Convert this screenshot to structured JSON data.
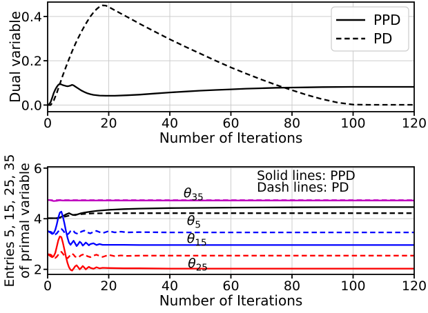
{
  "figure": {
    "background": "#ffffff",
    "grid_color": "#cccccc",
    "spine_color": "#000000",
    "colors": {
      "ppd_pd": "#000000",
      "theta5": "#000000",
      "theta15": "#0000ff",
      "theta25": "#ff0000",
      "theta35": "#bf00bf"
    }
  },
  "chart_data": [
    {
      "id": "dual",
      "type": "line",
      "title": "",
      "xlabel": "Number of Iterations",
      "ylabel": "Dual variable",
      "xlim": [
        0,
        120
      ],
      "ylim": [
        -0.03,
        0.465
      ],
      "xticks": [
        0,
        20,
        40,
        60,
        80,
        100,
        120
      ],
      "yticks": [
        0.0,
        0.2,
        0.4
      ],
      "ytick_labels": [
        "0.0",
        "0.2",
        "0.4"
      ],
      "grid": true,
      "legend": {
        "position": "upper right",
        "entries": [
          {
            "label": "PPD",
            "dash": false
          },
          {
            "label": "PD",
            "dash": true
          }
        ]
      },
      "series": [
        {
          "name": "PPD",
          "color": "#000000",
          "dash": false,
          "x": [
            0,
            0.5,
            1,
            1.5,
            2,
            2.5,
            3,
            3.5,
            4,
            4.5,
            5,
            6,
            6.5,
            7,
            7.5,
            8,
            8.5,
            9,
            10,
            11,
            12,
            13,
            14,
            15,
            17,
            19,
            22,
            26,
            30,
            35,
            40,
            45,
            50,
            55,
            60,
            65,
            70,
            75,
            80,
            85,
            90,
            100,
            110,
            120
          ],
          "y": [
            0,
            0.004,
            0.014,
            0.033,
            0.054,
            0.07,
            0.082,
            0.091,
            0.096,
            0.093,
            0.09,
            0.086,
            0.085,
            0.086,
            0.088,
            0.091,
            0.089,
            0.084,
            0.075,
            0.066,
            0.059,
            0.053,
            0.049,
            0.046,
            0.043,
            0.042,
            0.042,
            0.044,
            0.047,
            0.052,
            0.057,
            0.061,
            0.065,
            0.068,
            0.071,
            0.074,
            0.076,
            0.078,
            0.079,
            0.08,
            0.081,
            0.082,
            0.082,
            0.082
          ]
        },
        {
          "name": "PD",
          "color": "#000000",
          "dash": true,
          "x": [
            0,
            1,
            2,
            3,
            4,
            5,
            6,
            7,
            8,
            9,
            10,
            11,
            12,
            13,
            14,
            15,
            16,
            17,
            18,
            19,
            20,
            22,
            24,
            26,
            28,
            30,
            35,
            40,
            45,
            50,
            55,
            60,
            65,
            70,
            75,
            80,
            85,
            90,
            95,
            100,
            105,
            120
          ],
          "y": [
            0,
            0,
            0.02,
            0.055,
            0.095,
            0.135,
            0.172,
            0.208,
            0.242,
            0.274,
            0.303,
            0.33,
            0.355,
            0.378,
            0.4,
            0.418,
            0.433,
            0.444,
            0.45,
            0.449,
            0.443,
            0.428,
            0.413,
            0.398,
            0.383,
            0.368,
            0.332,
            0.297,
            0.264,
            0.232,
            0.2,
            0.17,
            0.142,
            0.115,
            0.09,
            0.067,
            0.045,
            0.026,
            0.011,
            0.002,
            0.001,
            0.001
          ]
        }
      ]
    },
    {
      "id": "primal",
      "type": "line",
      "title": "",
      "xlabel": "Number of Iterations",
      "ylabel_lines": [
        "Entries 5, 15, 25, 35",
        "of primal variable"
      ],
      "xlim": [
        0,
        120
      ],
      "ylim": [
        1.8,
        6.05
      ],
      "xticks": [
        0,
        20,
        40,
        60,
        80,
        100,
        120
      ],
      "yticks": [
        2,
        4,
        6
      ],
      "ytick_labels": [
        "2",
        "4",
        "6"
      ],
      "grid": true,
      "annotations": [
        {
          "name": "theta-35",
          "base": "θ",
          "sub": "35",
          "x": 44.5,
          "y": 4.85
        },
        {
          "name": "theta-5",
          "base": "θ",
          "sub": "5",
          "x": 45.6,
          "y": 3.76
        },
        {
          "name": "theta-15",
          "base": "θ",
          "sub": "15",
          "x": 45.6,
          "y": 3.05
        },
        {
          "name": "theta-25",
          "base": "θ",
          "sub": "25",
          "x": 45.9,
          "y": 2.07
        },
        {
          "name": "solid-lines-note",
          "text": "Solid lines: PPD",
          "x": 68.5,
          "y": 5.53
        },
        {
          "name": "dash-lines-note",
          "text": "Dash lines: PD",
          "x": 68.5,
          "y": 5.07
        }
      ],
      "series": [
        {
          "name": "theta5-pd",
          "color": "#000000",
          "dash": true,
          "x": [
            0,
            3,
            5,
            7,
            9,
            11,
            13,
            15,
            18,
            20,
            30,
            60,
            120
          ],
          "y": [
            4.02,
            4.02,
            4.06,
            4.12,
            4.16,
            4.18,
            4.2,
            4.21,
            4.215,
            4.22,
            4.22,
            4.22,
            4.22
          ]
        },
        {
          "name": "theta5-ppd",
          "color": "#000000",
          "dash": false,
          "x": [
            0,
            3,
            4,
            5,
            6,
            7,
            8,
            9,
            10,
            11,
            12,
            14,
            16,
            18,
            20,
            25,
            30,
            40,
            50,
            60,
            80,
            100,
            120
          ],
          "y": [
            4.02,
            4.02,
            4.05,
            4.1,
            4.17,
            4.22,
            4.16,
            4.14,
            4.18,
            4.22,
            4.24,
            4.28,
            4.31,
            4.33,
            4.35,
            4.38,
            4.4,
            4.42,
            4.43,
            4.44,
            4.45,
            4.46,
            4.46
          ]
        },
        {
          "name": "theta15-pd",
          "color": "#0000ff",
          "dash": true,
          "x": [
            0,
            1,
            2,
            2.5,
            3,
            3.5,
            4,
            4.5,
            5,
            5.5,
            6,
            6.5,
            7,
            7.5,
            8,
            8.5,
            9,
            10,
            11,
            12,
            13,
            14,
            15,
            16,
            17,
            18,
            19,
            20,
            22,
            24,
            26,
            30,
            40,
            60,
            80,
            100,
            120
          ],
          "y": [
            3.5,
            3.48,
            3.42,
            3.38,
            3.42,
            3.5,
            3.57,
            3.6,
            3.54,
            3.46,
            3.39,
            3.38,
            3.43,
            3.51,
            3.55,
            3.51,
            3.44,
            3.4,
            3.49,
            3.53,
            3.46,
            3.42,
            3.48,
            3.52,
            3.47,
            3.43,
            3.47,
            3.51,
            3.46,
            3.49,
            3.46,
            3.47,
            3.46,
            3.46,
            3.46,
            3.46,
            3.46
          ]
        },
        {
          "name": "theta15-ppd",
          "color": "#0000ff",
          "dash": false,
          "x": [
            0,
            0.8,
            1.5,
            2,
            2.5,
            3,
            3.5,
            4,
            4.5,
            5,
            5.5,
            6,
            6.5,
            7,
            7.5,
            8,
            8.5,
            9,
            9.5,
            10,
            10.5,
            11,
            11.5,
            12,
            12.5,
            13,
            13.5,
            14,
            15,
            16,
            17,
            18,
            20,
            25,
            30,
            40,
            60,
            80,
            100,
            120
          ],
          "y": [
            3.52,
            3.46,
            3.4,
            3.43,
            3.56,
            3.78,
            4.05,
            4.24,
            4.28,
            4.08,
            3.82,
            3.52,
            3.25,
            3.05,
            2.97,
            3.05,
            3.13,
            3.03,
            2.92,
            3.0,
            3.09,
            3.04,
            2.94,
            2.99,
            3.06,
            3.01,
            2.95,
            3.0,
            3.03,
            2.96,
            3.0,
            2.97,
            2.97,
            2.97,
            2.96,
            2.96,
            2.96,
            2.96,
            2.96,
            2.96
          ]
        },
        {
          "name": "theta25-pd",
          "color": "#ff0000",
          "dash": true,
          "x": [
            0,
            1,
            2,
            2.5,
            3,
            3.5,
            4,
            4.5,
            5,
            5.5,
            6,
            6.5,
            7,
            7.5,
            8,
            8.5,
            9,
            10,
            11,
            12,
            13,
            14,
            15,
            16,
            17,
            18,
            19,
            20,
            22,
            24,
            26,
            30,
            40,
            60,
            80,
            100,
            120
          ],
          "y": [
            2.6,
            2.58,
            2.5,
            2.45,
            2.5,
            2.58,
            2.66,
            2.69,
            2.62,
            2.53,
            2.46,
            2.44,
            2.5,
            2.58,
            2.62,
            2.58,
            2.5,
            2.47,
            2.56,
            2.6,
            2.52,
            2.48,
            2.54,
            2.58,
            2.53,
            2.49,
            2.53,
            2.57,
            2.52,
            2.55,
            2.53,
            2.54,
            2.54,
            2.54,
            2.54,
            2.54,
            2.54
          ]
        },
        {
          "name": "theta25-ppd",
          "color": "#ff0000",
          "dash": false,
          "x": [
            0,
            0.8,
            1.5,
            2,
            2.5,
            3,
            3.5,
            4,
            4.5,
            5,
            5.5,
            6,
            6.5,
            7,
            7.5,
            8,
            8.5,
            9,
            9.5,
            10,
            10.5,
            11,
            11.5,
            12,
            12.5,
            13,
            13.5,
            14,
            15,
            16,
            17,
            18,
            20,
            25,
            30,
            40,
            60,
            80,
            100,
            120
          ],
          "y": [
            2.6,
            2.53,
            2.48,
            2.52,
            2.65,
            2.9,
            3.15,
            3.3,
            3.27,
            3.05,
            2.78,
            2.5,
            2.25,
            2.08,
            1.98,
            1.95,
            2.03,
            2.12,
            2.16,
            2.08,
            2.0,
            2.06,
            2.13,
            2.07,
            2.0,
            2.05,
            2.1,
            2.06,
            2.02,
            2.08,
            2.04,
            2.06,
            2.05,
            2.04,
            2.04,
            2.03,
            2.03,
            2.03,
            2.03,
            2.03
          ]
        },
        {
          "name": "theta35-ppd",
          "color": "#bf00bf",
          "dash": false,
          "x": [
            0,
            1,
            2,
            3,
            4,
            5,
            6,
            8,
            10,
            15,
            20,
            30,
            60,
            120
          ],
          "y": [
            4.75,
            4.73,
            4.7,
            4.71,
            4.73,
            4.72,
            4.72,
            4.72,
            4.72,
            4.72,
            4.72,
            4.72,
            4.72,
            4.72
          ]
        },
        {
          "name": "theta35-pd",
          "color": "#bf00bf",
          "dash": true,
          "x": [
            0,
            2,
            4,
            6,
            10,
            20,
            40,
            120
          ],
          "y": [
            4.74,
            4.73,
            4.74,
            4.735,
            4.735,
            4.735,
            4.735,
            4.735
          ]
        }
      ]
    }
  ]
}
